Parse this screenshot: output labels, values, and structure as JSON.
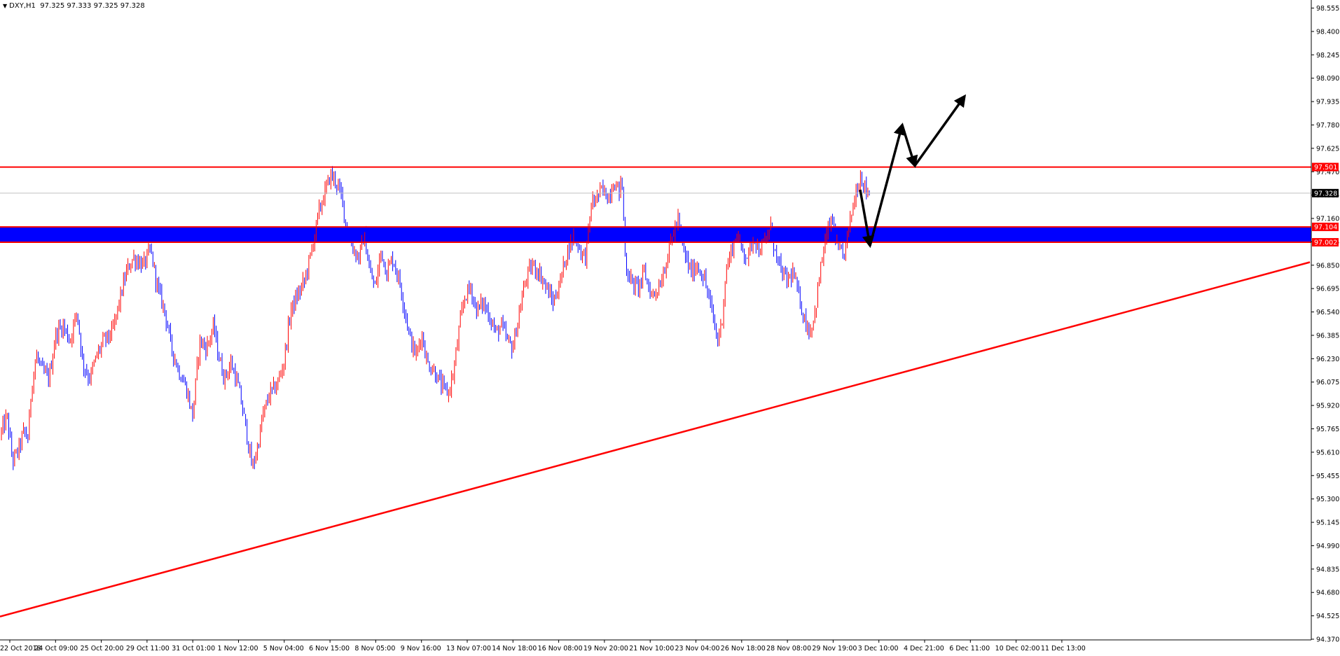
{
  "header": {
    "symbol": "DXY,H1",
    "ohlc": "97.325 97.333 97.325 97.328"
  },
  "colors": {
    "background": "#ffffff",
    "axis": "#000000",
    "bull_candle": "#ff0000",
    "bear_candle": "#0000ff",
    "level_line": "#ff0000",
    "zone_fill": "#0000ff",
    "trendline": "#ff0000",
    "arrow": "#000000",
    "current_price_bg": "#000000",
    "level_label_bg": "#ff0000"
  },
  "chart_data": {
    "type": "candlestick",
    "instrument": "DXY",
    "timeframe": "H1",
    "ylim": [
      94.37,
      98.65
    ],
    "y_ticks": [
      "98.555",
      "98.400",
      "98.245",
      "98.090",
      "97.935",
      "97.780",
      "97.625",
      "97.470",
      "97.315",
      "97.160",
      "97.005",
      "96.850",
      "96.695",
      "96.540",
      "96.385",
      "96.230",
      "96.075",
      "95.920",
      "95.765",
      "95.610",
      "95.455",
      "95.300",
      "95.145",
      "94.990",
      "94.835",
      "94.680",
      "94.525",
      "94.370"
    ],
    "x_ticks": [
      "22 Oct 2018",
      "24 Oct 09:00",
      "25 Oct 20:00",
      "29 Oct 11:00",
      "31 Oct 01:00",
      "1 Nov 12:00",
      "5 Nov 04:00",
      "6 Nov 15:00",
      "8 Nov 05:00",
      "9 Nov 16:00",
      "13 Nov 07:00",
      "14 Nov 18:00",
      "16 Nov 08:00",
      "19 Nov 20:00",
      "21 Nov 10:00",
      "23 Nov 04:00",
      "26 Nov 18:00",
      "28 Nov 08:00",
      "29 Nov 19:00",
      "3 Dec 10:00",
      "4 Dec 21:00",
      "6 Dec 11:00",
      "10 Dec 02:00",
      "11 Dec 13:00"
    ],
    "bar_count": 590,
    "price_path": [
      [
        0,
        95.72
      ],
      [
        10,
        95.85
      ],
      [
        18,
        95.55
      ],
      [
        26,
        95.62
      ],
      [
        34,
        95.75
      ],
      [
        40,
        95.7
      ],
      [
        45,
        96.05
      ],
      [
        52,
        96.25
      ],
      [
        60,
        96.15
      ],
      [
        70,
        96.1
      ],
      [
        80,
        96.4
      ],
      [
        90,
        96.45
      ],
      [
        100,
        96.35
      ],
      [
        110,
        96.55
      ],
      [
        118,
        96.2
      ],
      [
        128,
        96.1
      ],
      [
        138,
        96.25
      ],
      [
        148,
        96.35
      ],
      [
        160,
        96.4
      ],
      [
        170,
        96.6
      ],
      [
        180,
        96.8
      ],
      [
        190,
        96.9
      ],
      [
        205,
        96.85
      ],
      [
        215,
        96.95
      ],
      [
        225,
        96.7
      ],
      [
        235,
        96.55
      ],
      [
        245,
        96.3
      ],
      [
        255,
        96.15
      ],
      [
        265,
        96.05
      ],
      [
        275,
        95.85
      ],
      [
        285,
        96.35
      ],
      [
        295,
        96.3
      ],
      [
        305,
        96.45
      ],
      [
        312,
        96.25
      ],
      [
        320,
        96.1
      ],
      [
        330,
        96.2
      ],
      [
        340,
        96.05
      ],
      [
        350,
        95.8
      ],
      [
        360,
        95.5
      ],
      [
        368,
        95.65
      ],
      [
        375,
        95.85
      ],
      [
        385,
        96.0
      ],
      [
        395,
        96.05
      ],
      [
        405,
        96.2
      ],
      [
        415,
        96.55
      ],
      [
        425,
        96.65
      ],
      [
        435,
        96.75
      ],
      [
        445,
        96.95
      ],
      [
        455,
        97.2
      ],
      [
        465,
        97.35
      ],
      [
        472,
        97.45
      ],
      [
        480,
        97.4
      ],
      [
        488,
        97.3
      ],
      [
        496,
        97.05
      ],
      [
        505,
        96.95
      ],
      [
        512,
        96.9
      ],
      [
        520,
        97.05
      ],
      [
        528,
        96.8
      ],
      [
        536,
        96.7
      ],
      [
        544,
        96.95
      ],
      [
        552,
        96.8
      ],
      [
        560,
        96.9
      ],
      [
        570,
        96.75
      ],
      [
        578,
        96.55
      ],
      [
        586,
        96.35
      ],
      [
        594,
        96.25
      ],
      [
        602,
        96.4
      ],
      [
        610,
        96.2
      ],
      [
        620,
        96.15
      ],
      [
        630,
        96.05
      ],
      [
        640,
        96.0
      ],
      [
        648,
        96.15
      ],
      [
        656,
        96.45
      ],
      [
        664,
        96.65
      ],
      [
        672,
        96.7
      ],
      [
        680,
        96.55
      ],
      [
        690,
        96.6
      ],
      [
        700,
        96.5
      ],
      [
        708,
        96.4
      ],
      [
        716,
        96.45
      ],
      [
        724,
        96.35
      ],
      [
        732,
        96.3
      ],
      [
        740,
        96.5
      ],
      [
        750,
        96.75
      ],
      [
        760,
        96.85
      ],
      [
        770,
        96.8
      ],
      [
        780,
        96.7
      ],
      [
        790,
        96.6
      ],
      [
        800,
        96.75
      ],
      [
        810,
        96.95
      ],
      [
        820,
        97.05
      ],
      [
        828,
        96.95
      ],
      [
        836,
        96.9
      ],
      [
        844,
        97.25
      ],
      [
        852,
        97.3
      ],
      [
        860,
        97.35
      ],
      [
        868,
        97.3
      ],
      [
        876,
        97.4
      ],
      [
        884,
        97.35
      ],
      [
        888,
        97.4
      ],
      [
        893,
        96.85
      ],
      [
        900,
        96.75
      ],
      [
        910,
        96.7
      ],
      [
        920,
        96.8
      ],
      [
        930,
        96.65
      ],
      [
        940,
        96.7
      ],
      [
        950,
        96.85
      ],
      [
        960,
        97.05
      ],
      [
        968,
        97.15
      ],
      [
        976,
        96.95
      ],
      [
        986,
        96.8
      ],
      [
        996,
        96.85
      ],
      [
        1006,
        96.75
      ],
      [
        1016,
        96.55
      ],
      [
        1024,
        96.35
      ],
      [
        1030,
        96.45
      ],
      [
        1036,
        96.8
      ],
      [
        1044,
        96.95
      ],
      [
        1052,
        97.05
      ],
      [
        1060,
        96.95
      ],
      [
        1068,
        96.9
      ],
      [
        1076,
        97.05
      ],
      [
        1084,
        96.95
      ],
      [
        1092,
        97.0
      ],
      [
        1100,
        97.1
      ],
      [
        1108,
        96.9
      ],
      [
        1116,
        96.8
      ],
      [
        1124,
        96.75
      ],
      [
        1132,
        96.8
      ],
      [
        1140,
        96.65
      ],
      [
        1148,
        96.5
      ],
      [
        1156,
        96.4
      ],
      [
        1164,
        96.55
      ],
      [
        1172,
        96.85
      ],
      [
        1180,
        97.05
      ],
      [
        1188,
        97.15
      ],
      [
        1196,
        96.95
      ],
      [
        1204,
        96.9
      ],
      [
        1212,
        97.1
      ],
      [
        1220,
        97.3
      ],
      [
        1228,
        97.45
      ],
      [
        1236,
        97.35
      ],
      [
        1242,
        97.33
      ]
    ],
    "levels": [
      {
        "name": "resistance",
        "value": 97.501,
        "label": "97.501"
      },
      {
        "name": "zone-top",
        "value": 97.104,
        "label": "97.104"
      },
      {
        "name": "zone-bottom",
        "value": 97.002,
        "label": "97.002"
      }
    ],
    "current_price": {
      "value": 97.328,
      "label": "97.328"
    },
    "trendline": {
      "from": {
        "bar_x": 0,
        "price": 94.52
      },
      "to": {
        "bar_x": 1870,
        "price": 96.87
      }
    },
    "forecast_arrows": [
      {
        "points": [
          [
            1228,
            97.35
          ],
          [
            1242,
            96.98
          ]
        ]
      },
      {
        "points": [
          [
            1242,
            96.98
          ],
          [
            1288,
            97.78
          ]
        ]
      },
      {
        "points": [
          [
            1288,
            97.78
          ],
          [
            1306,
            97.51
          ]
        ]
      },
      {
        "points": [
          [
            1306,
            97.51
          ],
          [
            1377,
            97.97
          ]
        ]
      }
    ],
    "grid": false
  }
}
